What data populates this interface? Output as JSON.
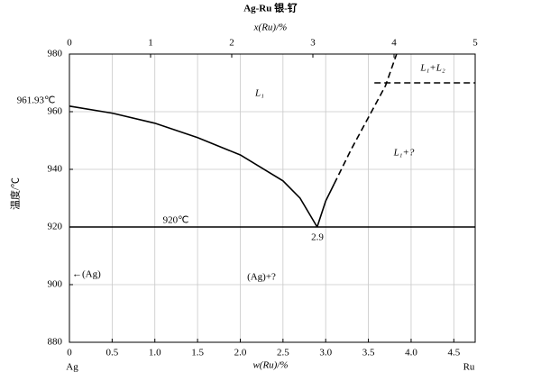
{
  "chart_data": {
    "type": "line",
    "title": "Ag-Ru   银-钌",
    "x_label": "w(Ru)/%",
    "x2_label": "x(Ru)/%",
    "y_label": "温度/℃",
    "end_labels": [
      "Ag",
      "Ru"
    ],
    "xlim": [
      0,
      4.75
    ],
    "xticks": [
      0,
      0.5,
      {
        "value": 1,
        "label": "1.0"
      },
      1.5,
      {
        "value": 2,
        "label": "2.0"
      },
      2.5,
      {
        "value": 3,
        "label": "3.0"
      },
      3.5,
      {
        "value": 4,
        "label": "4.0"
      },
      4.5
    ],
    "x2lim": [
      0,
      5
    ],
    "x2ticks": [
      0,
      1,
      2,
      3,
      4,
      5
    ],
    "ylim": [
      880,
      980
    ],
    "yticks": [
      880,
      900,
      920,
      940,
      960,
      980
    ],
    "grid": true,
    "series": [
      {
        "color": "#000000",
        "dashed": false,
        "x": [
          0,
          0.5,
          1,
          1.5,
          2,
          2.5,
          2.7,
          2.9
        ],
        "values": [
          961.93,
          959.5,
          956,
          951,
          945,
          936,
          930,
          920
        ]
      },
      {
        "color": "#000000",
        "dashed": false,
        "x": [
          2.9,
          3.0,
          3.1
        ],
        "values": [
          920,
          929,
          935
        ]
      },
      {
        "color": "#000000",
        "dashed": true,
        "x": [
          3.1,
          3.3,
          3.5,
          3.7,
          3.83
        ],
        "values": [
          935,
          947,
          958,
          969,
          980
        ]
      },
      {
        "color": "#000000",
        "dashed": true,
        "x": [
          3.57,
          4.75
        ],
        "values": [
          970,
          970
        ]
      },
      {
        "color": "#000000",
        "dashed": false,
        "x": [
          0,
          4.75
        ],
        "values": [
          920,
          920
        ]
      }
    ],
    "annotations": [
      "961.93℃",
      "L₁",
      "L₁+L₂",
      "L₁+?",
      "920℃",
      "2.9",
      "←(Ag)",
      "(Ag)+?"
    ]
  }
}
